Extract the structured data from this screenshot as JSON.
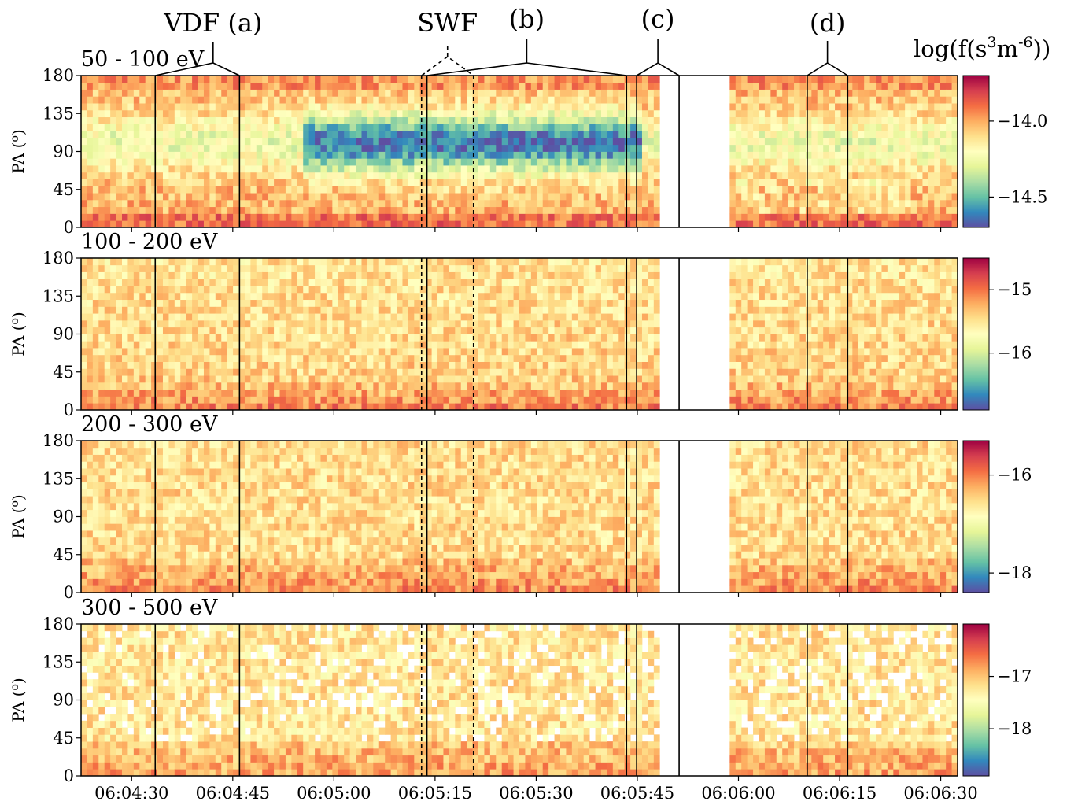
{
  "chart_data": {
    "type": "heatmap",
    "colormap": "Spectral_r",
    "y_axis": {
      "label": "PA (",
      "label_sup": "o",
      "label_close": ")",
      "ticks": [
        "0",
        "45",
        "90",
        "135",
        "180"
      ],
      "tick_values": [
        0,
        45,
        90,
        135,
        180
      ],
      "ylim": [
        0,
        180
      ]
    },
    "x_axis": {
      "tick_labels": [
        "06:04:30",
        "06:04:45",
        "06:05:00",
        "06:05:15",
        "06:05:30",
        "06:05:45",
        "06:06:00",
        "06:06:15",
        "06:06:30"
      ],
      "tick_seconds": [
        30,
        45,
        60,
        75,
        90,
        105,
        120,
        135,
        150
      ],
      "xlim_seconds": [
        22.5,
        152.5
      ],
      "time_origin": "06:04:00"
    },
    "data_gap_seconds": [
      108.5,
      118.5
    ],
    "colorbar_title": {
      "prefix": "log(f(s",
      "sup1": "3",
      "middle": "m",
      "sup2": "-6",
      "suffix": "))"
    },
    "panels": [
      {
        "energy_label": "50 - 100 eV",
        "colorbar": {
          "range": [
            -14.7,
            -13.7
          ],
          "ticks": [
            -14.0,
            -14.5
          ],
          "tick_labels": [
            "−14.0",
            "−14.5"
          ]
        }
      },
      {
        "energy_label": "100 - 200 eV",
        "colorbar": {
          "range": [
            -16.9,
            -14.5
          ],
          "ticks": [
            -15,
            -16
          ],
          "tick_labels": [
            "−15",
            "−16"
          ]
        }
      },
      {
        "energy_label": "200 - 300 eV",
        "colorbar": {
          "range": [
            -18.4,
            -15.3
          ],
          "ticks": [
            -16,
            -18
          ],
          "tick_labels": [
            "−16",
            "−18"
          ]
        }
      },
      {
        "energy_label": "300 - 500 eV",
        "colorbar": {
          "range": [
            -18.9,
            -16.0
          ],
          "ticks": [
            -17,
            -18
          ],
          "tick_labels": [
            "−17",
            "−18"
          ]
        }
      }
    ],
    "interval_markers": [
      {
        "label": "VDF (a)",
        "start_s": 33.5,
        "end_s": 46.0,
        "style": "solid"
      },
      {
        "label": "SWF",
        "start_s": 73.0,
        "end_s": 80.7,
        "style": "dashed"
      },
      {
        "label": "(b)",
        "start_s": 73.8,
        "end_s": 103.4,
        "style": "solid"
      },
      {
        "label": "(c)",
        "start_s": 104.9,
        "end_s": 111.2,
        "style": "solid"
      },
      {
        "label": "(d)",
        "start_s": 130.2,
        "end_s": 136.2,
        "style": "solid"
      }
    ]
  }
}
